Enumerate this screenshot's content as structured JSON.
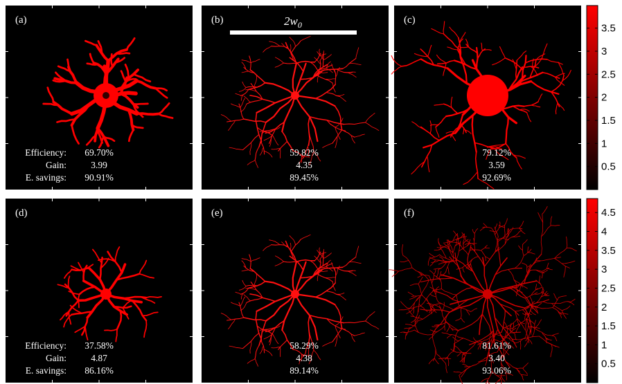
{
  "chart_data": {
    "type": "heatmap",
    "panels": [
      {
        "label": "(a)",
        "efficiency": "69.70%",
        "gain": "3.99",
        "savings": "90.91%",
        "shape": "blob"
      },
      {
        "label": "(b)",
        "efficiency": "59.82%",
        "gain": "4.35",
        "savings": "89.45%",
        "shape": "tree"
      },
      {
        "label": "(c)",
        "efficiency": "79.12%",
        "gain": "3.59",
        "savings": "92.69%",
        "shape": "big-blob"
      },
      {
        "label": "(d)",
        "efficiency": "37.58%",
        "gain": "4.87",
        "savings": "86.16%",
        "shape": "small-tree"
      },
      {
        "label": "(e)",
        "efficiency": "58.29%",
        "gain": "4.38",
        "savings": "89.14%",
        "shape": "tree"
      },
      {
        "label": "(f)",
        "efficiency": "81.61%",
        "gain": "3.40",
        "savings": "93.06%",
        "shape": "dense-tree"
      }
    ],
    "row_labels": {
      "efficiency": "Efficiency:",
      "gain": "Gain:",
      "savings": "E. savings:"
    },
    "scale_bar_label": "2w",
    "scale_bar_subscript": "0",
    "colorbars": [
      {
        "ticks": [
          0.5,
          1,
          1.5,
          2,
          2.5,
          3,
          3.5
        ],
        "range": [
          0,
          3.99
        ]
      },
      {
        "ticks": [
          0.5,
          1,
          1.5,
          2,
          2.5,
          3,
          3.5,
          4,
          4.5
        ],
        "range": [
          0,
          4.87
        ]
      }
    ],
    "colormap": [
      "#000000",
      "#ff0000"
    ]
  }
}
